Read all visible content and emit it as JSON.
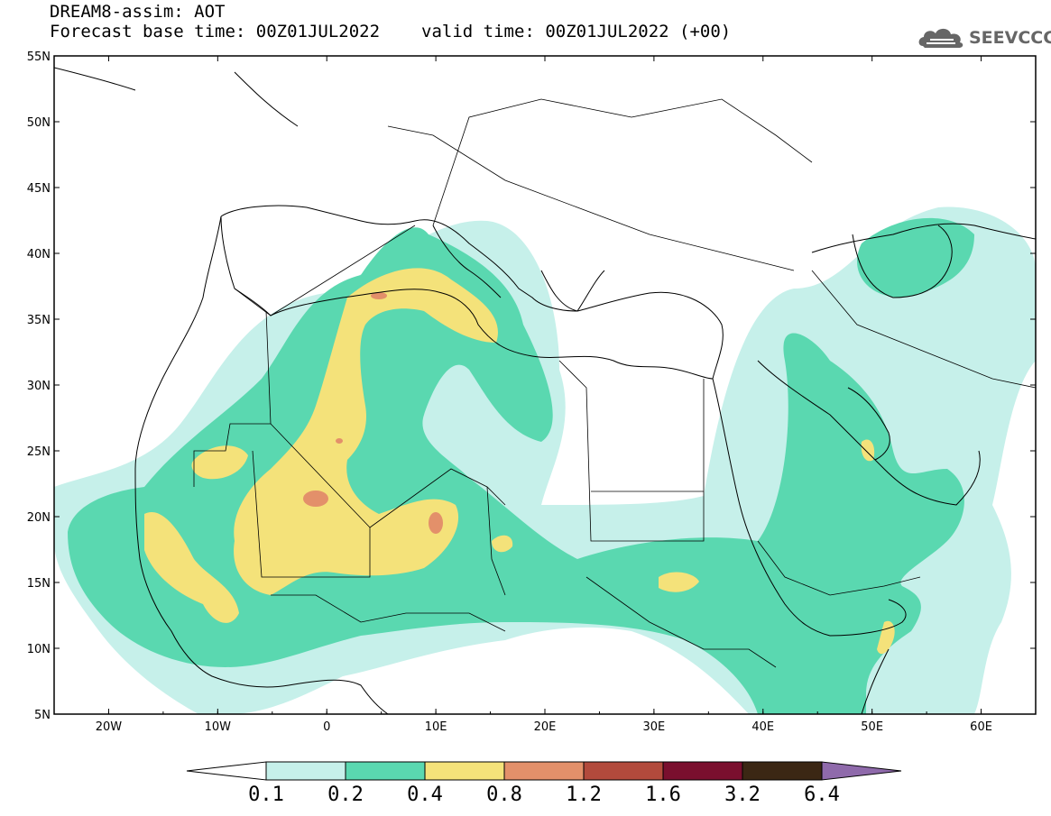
{
  "header": {
    "model_line": "DREAM8-assim: AOT",
    "base_time": "Forecast base time: 00Z01JUL2022",
    "valid_time": "valid time: 00Z01JUL2022 (+00)"
  },
  "logo": {
    "text": "SEEVCCC",
    "icon": "cloud-icon"
  },
  "map": {
    "lon_range": [
      -25,
      65
    ],
    "lat_range": [
      5,
      55
    ],
    "lat_ticks": [
      "5N",
      "10N",
      "15N",
      "20N",
      "25N",
      "30N",
      "35N",
      "40N",
      "45N",
      "50N",
      "55N"
    ],
    "lon_ticks": [
      "20W",
      "10W",
      "0",
      "10E",
      "20E",
      "30E",
      "40E",
      "50E",
      "60E"
    ]
  },
  "colorbar": {
    "levels": [
      "0.1",
      "0.2",
      "0.4",
      "0.8",
      "1.2",
      "1.6",
      "3.2",
      "6.4"
    ],
    "colors": [
      "#c6f0ea",
      "#5ad8b0",
      "#f4e27a",
      "#e3906a",
      "#b24a3c",
      "#7a0f2e",
      "#3b2714",
      "#8f6aab"
    ],
    "low_extension_color": "#ffffff"
  }
}
